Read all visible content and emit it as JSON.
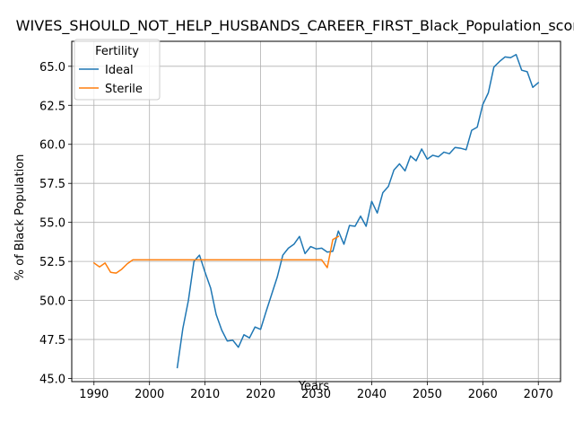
{
  "chart_data": {
    "type": "line",
    "title": "WIVES_SHOULD_NOT_HELP_HUSBANDS_CAREER_FIRST_Black_Population_score",
    "xlabel": "Years",
    "ylabel": "% of Black Population",
    "xlim": [
      1986,
      2074
    ],
    "ylim": [
      44.8,
      66.6
    ],
    "xticks": [
      1990,
      2000,
      2010,
      2020,
      2030,
      2040,
      2050,
      2060,
      2070
    ],
    "yticks": [
      45.0,
      47.5,
      50.0,
      52.5,
      55.0,
      57.5,
      60.0,
      62.5,
      65.0
    ],
    "ytick_labels": [
      "45.0",
      "47.5",
      "50.0",
      "52.5",
      "55.0",
      "57.5",
      "60.0",
      "62.5",
      "65.0"
    ],
    "grid": true,
    "legend": {
      "title": "Fertility",
      "placement": "top-left"
    },
    "series": [
      {
        "name": "Ideal",
        "color": "#1f77b4",
        "x": [
          2005,
          2006,
          2007,
          2008,
          2009,
          2010,
          2011,
          2012,
          2013,
          2014,
          2015,
          2016,
          2017,
          2018,
          2019,
          2020,
          2021,
          2022,
          2023,
          2024,
          2025,
          2026,
          2027,
          2028,
          2029,
          2030,
          2031,
          2032,
          2033,
          2034,
          2035,
          2036,
          2037,
          2038,
          2039,
          2040,
          2041,
          2042,
          2043,
          2044,
          2045,
          2046,
          2047,
          2048,
          2049,
          2050,
          2051,
          2052,
          2053,
          2054,
          2055,
          2056,
          2057,
          2058,
          2059,
          2060,
          2061,
          2062,
          2063,
          2064,
          2065,
          2066,
          2067,
          2068,
          2069,
          2070
        ],
        "y": [
          45.7,
          48.2,
          50.0,
          52.5,
          52.9,
          51.8,
          50.8,
          49.1,
          48.1,
          47.4,
          47.45,
          47.0,
          47.8,
          47.6,
          48.3,
          48.15,
          49.3,
          50.4,
          51.5,
          52.9,
          53.35,
          53.6,
          54.1,
          53.0,
          53.45,
          53.3,
          53.35,
          53.1,
          53.15,
          54.45,
          53.6,
          54.8,
          54.75,
          55.4,
          54.75,
          56.35,
          55.6,
          56.9,
          57.3,
          58.35,
          58.75,
          58.3,
          59.25,
          58.95,
          59.7,
          59.05,
          59.3,
          59.2,
          59.5,
          59.4,
          59.8,
          59.75,
          59.65,
          60.9,
          61.1,
          62.55,
          63.3,
          64.95,
          65.3,
          65.6,
          65.55,
          65.75,
          64.75,
          64.65,
          63.65,
          63.95
        ]
      },
      {
        "name": "Sterile",
        "color": "#ff7f0e",
        "x": [
          1990,
          1991,
          1992,
          1993,
          1994,
          1995,
          1996,
          1997,
          1998,
          2000,
          2005,
          2010,
          2015,
          2020,
          2025,
          2030,
          2031,
          2032,
          2033,
          2034
        ],
        "y": [
          52.4,
          52.15,
          52.4,
          51.8,
          51.75,
          52.0,
          52.35,
          52.6,
          52.6,
          52.6,
          52.6,
          52.6,
          52.6,
          52.6,
          52.6,
          52.6,
          52.6,
          52.1,
          53.9,
          54.1
        ]
      }
    ]
  }
}
